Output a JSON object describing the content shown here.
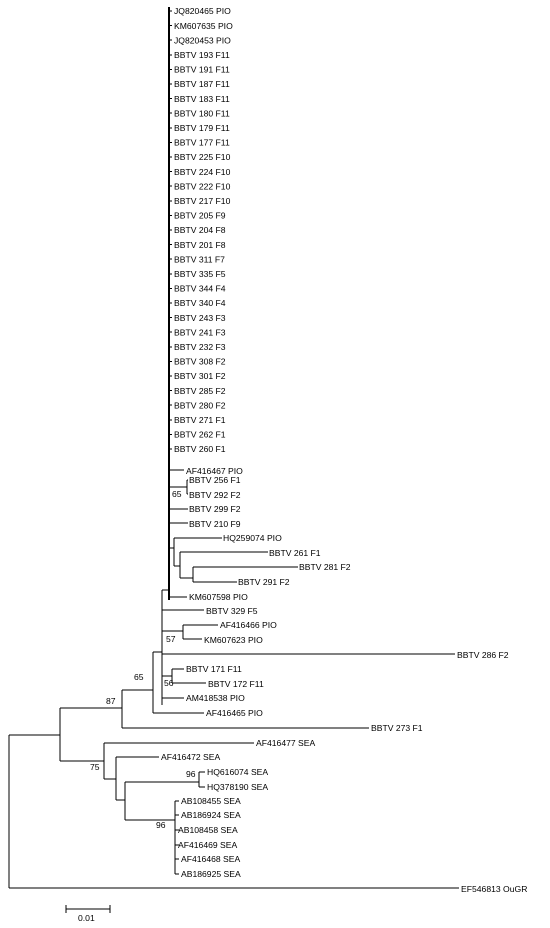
{
  "tree": {
    "pio_trunk_tips": [
      "JQ820465 PIO",
      "KM607635 PIO",
      "JQ820453 PIO",
      "BBTV 193 F11",
      "BBTV 191 F11",
      "BBTV 187 F11",
      "BBTV 183 F11",
      "BBTV 180 F11",
      "BBTV 179 F11",
      "BBTV 177 F11",
      "BBTV 225 F10",
      "BBTV 224 F10",
      "BBTV 222 F10",
      "BBTV 217 F10",
      "BBTV 205 F9",
      "BBTV 204 F8",
      "BBTV 201 F8",
      "BBTV 311 F7",
      "BBTV 335 F5",
      "BBTV 344 F4",
      "BBTV 340 F4",
      "BBTV 243 F3",
      "BBTV 241 F3",
      "BBTV 232 F3",
      "BBTV 308 F2",
      "BBTV 301 F2",
      "BBTV 285 F2",
      "BBTV 280 F2",
      "BBTV 271 F1",
      "BBTV 262 F1",
      "BBTV 260 F1"
    ],
    "labels": {
      "af416467": "AF416467 PIO",
      "b256": "BBTV 256 F1",
      "b292": "BBTV 292 F2",
      "b299": "BBTV 299 F2",
      "b210": "BBTV 210 F9",
      "hq259074": "HQ259074 PIO",
      "b261": "BBTV 261 F1",
      "b281": "BBTV 281 F2",
      "b291": "BBTV 291 F2",
      "km607598": "KM607598 PIO",
      "b329": "BBTV 329 F5",
      "af416466": "AF416466 PIO",
      "km607623": "KM607623 PIO",
      "b286": "BBTV 286 F2",
      "b171": "BBTV 171 F11",
      "b172": "BBTV 172 F11",
      "am418538": "AM418538 PIO",
      "af416465": "AF416465 PIO",
      "b273": "BBTV 273 F1",
      "af416477": "AF416477 SEA",
      "af416472": "AF416472 SEA",
      "hq616074": "HQ616074 SEA",
      "hq378190": "HQ378190 SEA",
      "ab108455": "AB108455 SEA",
      "ab186924": "AB186924 SEA",
      "ab108458": "AB108458 SEA",
      "af416469": "AF416469 SEA",
      "af416468": "AF416468 SEA",
      "ab186925": "AB186925 SEA",
      "ef546813": "EF546813 OuGR"
    },
    "bootstrap": {
      "n65a": "65",
      "n57": "57",
      "n56": "56",
      "n65b": "65",
      "n87": "87",
      "n75": "75",
      "n96a": "96",
      "n96b": "96"
    },
    "scale_bar_label": "0.01"
  }
}
